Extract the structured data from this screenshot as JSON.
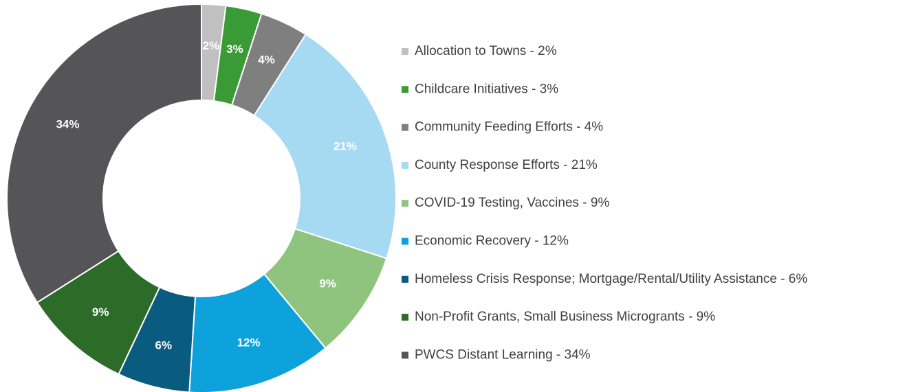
{
  "chart_data": {
    "type": "pie",
    "donut": true,
    "categories": [
      "Allocation to Towns - 2%",
      "Childcare Initiatives - 3%",
      "Community Feeding Efforts - 4%",
      "County Response Efforts - 21%",
      "COVID-19 Testing, Vaccines - 9%",
      "Economic Recovery - 12%",
      "Homeless Crisis Response; Mortgage/Rental/Utility Assistance - 6%",
      "Non-Profit Grants, Small Business Micrograms - 9%",
      "PWCS Distant Learning - 34%"
    ],
    "values": [
      2,
      3,
      4,
      21,
      9,
      12,
      6,
      9,
      34
    ],
    "value_labels": [
      "2%",
      "3%",
      "4%",
      "21%",
      "9%",
      "12%",
      "6%",
      "9%",
      "34%"
    ],
    "colors": [
      "#c0c0c0",
      "#3a9a35",
      "#7f7f7f",
      "#a6d9f2",
      "#8fc47e",
      "#0ea2dc",
      "#0a5b80",
      "#2d6b28",
      "#555557"
    ]
  }
}
